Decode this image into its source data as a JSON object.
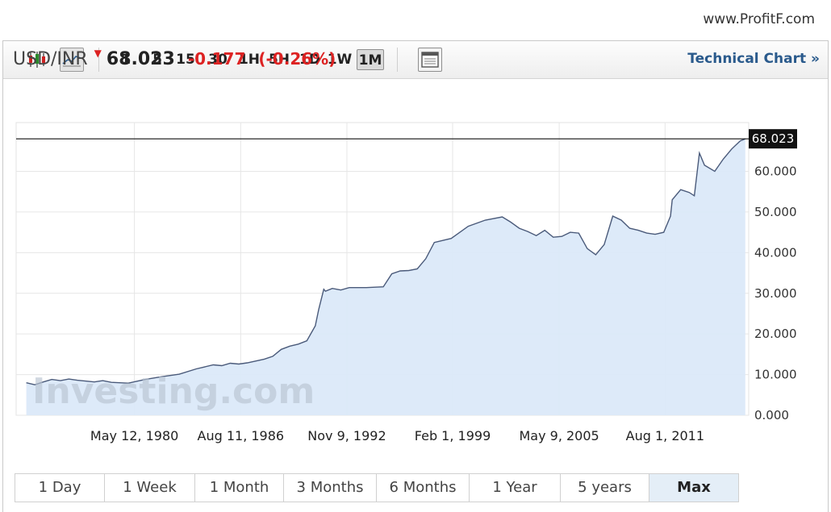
{
  "watermark_site": "www.ProfitF.com",
  "toolbar": {
    "icons": [
      "candlestick-icon",
      "line-chart-icon",
      "calendar-icon"
    ],
    "intervals": [
      "1",
      "5",
      "15",
      "30",
      "1H",
      "5H",
      "1D",
      "1W",
      "1M"
    ],
    "active_interval": "1M",
    "technical_link": "Technical Chart »"
  },
  "quote": {
    "symbol": "USD/INR",
    "direction": "down",
    "price": "68.023",
    "change": "-0.177",
    "change_pct": "(-0.26%)"
  },
  "chart_data": {
    "type": "area",
    "series": [
      {
        "x": [
          1974.0,
          1974.5,
          1975.0,
          1975.5,
          1976.0,
          1976.5,
          1977.0,
          1978.0,
          1978.5,
          1979.0,
          1980.0,
          1981.0,
          1982.0,
          1983.0,
          1984.0,
          1985.0,
          1985.5,
          1986.0,
          1986.5,
          1987.0,
          1988.0,
          1988.5,
          1989.0,
          1989.5,
          1990.0,
          1990.5,
          1991.0,
          1991.2,
          1991.5,
          1991.6,
          1992.0,
          1992.5,
          1993.0,
          1993.5,
          1994.0,
          1995.0,
          1995.5,
          1996.0,
          1996.5,
          1997.0,
          1997.5,
          1998.0,
          1998.5,
          1999.0,
          2000.0,
          2001.0,
          2002.0,
          2002.5,
          2003.0,
          2003.5,
          2004.0,
          2004.5,
          2005.0,
          2005.5,
          2006.0,
          2006.5,
          2007.0,
          2007.5,
          2008.0,
          2008.5,
          2009.0,
          2009.5,
          2010.0,
          2010.5,
          2011.0,
          2011.5,
          2011.9,
          2012.0,
          2012.5,
          2013.0,
          2013.3,
          2013.6,
          2013.9,
          2014.5,
          2015.0,
          2015.5,
          2016.0,
          2016.3
        ],
        "y": [
          8.0,
          7.5,
          8.2,
          8.8,
          8.5,
          8.9,
          8.6,
          8.2,
          8.5,
          8.1,
          7.9,
          8.8,
          9.5,
          10.1,
          11.4,
          12.4,
          12.2,
          12.8,
          12.6,
          12.9,
          13.8,
          14.5,
          16.2,
          17.0,
          17.5,
          18.3,
          22.0,
          26.0,
          31.0,
          30.5,
          31.2,
          30.8,
          31.4,
          31.4,
          31.4,
          31.6,
          34.8,
          35.5,
          35.6,
          36.0,
          38.5,
          42.5,
          43.0,
          43.5,
          46.5,
          48.0,
          48.8,
          47.5,
          46.0,
          45.2,
          44.2,
          45.5,
          43.8,
          44.0,
          45.0,
          44.8,
          41.0,
          39.5,
          42.0,
          49.0,
          48.0,
          46.0,
          45.5,
          44.8,
          44.5,
          45.0,
          49.0,
          53.0,
          55.5,
          54.8,
          54.0,
          64.5,
          61.5,
          60.0,
          63.0,
          65.5,
          67.5,
          68.0
        ]
      }
    ],
    "last_value_label": "68.023",
    "y_ticks": [
      "0.000",
      "10.000",
      "20.000",
      "30.000",
      "40.000",
      "50.000",
      "60.000"
    ],
    "x_tick_labels": [
      "May 12, 1980",
      "Aug 11, 1986",
      "Nov 9, 1992",
      "Feb 1, 1999",
      "May 9, 2005",
      "Aug 1, 2011"
    ],
    "x_tick_values": [
      1980.36,
      1986.61,
      1992.86,
      1999.08,
      2005.35,
      2011.58
    ],
    "xlim": [
      1973.4,
      2016.5
    ],
    "ylim": [
      0,
      72
    ],
    "fill_color": "#dbe9f9",
    "line_color": "#4a5a7a",
    "grid": true,
    "watermark": "Investing.com"
  },
  "ranges": {
    "items": [
      "1 Day",
      "1 Week",
      "1 Month",
      "3 Months",
      "6 Months",
      "1 Year",
      "5 years",
      "Max"
    ],
    "active": "Max"
  }
}
